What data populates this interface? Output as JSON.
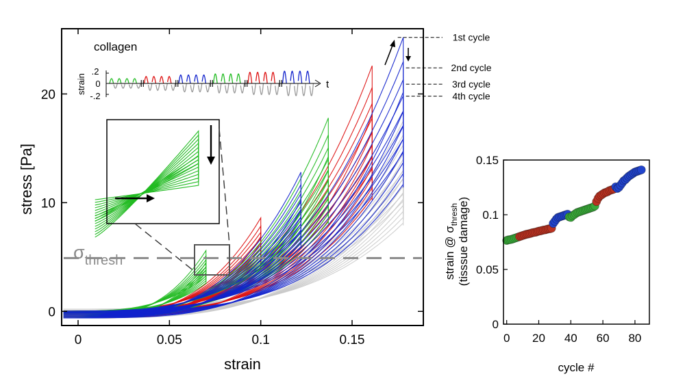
{
  "chart_data": [
    {
      "type": "line",
      "title": "",
      "panel_label": "collagen",
      "xlabel": "strain",
      "ylabel": "stress [Pa]",
      "xlim": [
        -0.009,
        0.189
      ],
      "ylim": [
        -1.3,
        26.0
      ],
      "xticks": [
        0,
        0.05,
        0.1,
        0.15
      ],
      "xtick_labels": [
        "0",
        "0.05",
        "0.1",
        "0.15"
      ],
      "yticks": [
        0,
        10,
        20
      ],
      "ytick_labels": [
        "0",
        "10",
        "20"
      ],
      "grid": false,
      "series": [
        {
          "name": "green",
          "color": "#22bb22",
          "max_strains": [
            0.07,
            0.137
          ],
          "peak_stress": [
            5.6,
            17.8
          ]
        },
        {
          "name": "red",
          "color": "#dd1111",
          "max_strains": [
            0.1,
            0.161
          ],
          "peak_stress": [
            8.6,
            22.6
          ]
        },
        {
          "name": "blue",
          "color": "#1122cc",
          "max_strains": [
            0.122,
            0.178
          ],
          "peak_stress": [
            12.8,
            25.2
          ]
        },
        {
          "name": "grey",
          "color": "#c8c8c8",
          "max_strains": [
            0.178
          ],
          "peak_stress": [
            17.5
          ]
        }
      ],
      "threshold": {
        "label_main": "σ",
        "label_sub": "thresh",
        "value": 4.9,
        "color": "#888888"
      },
      "cycle_annotations": [
        {
          "label": "1st cycle",
          "stress": 25.2
        },
        {
          "label": "2nd cycle",
          "stress": 22.4
        },
        {
          "label": "3rd cycle",
          "stress": 20.9
        },
        {
          "label": "4th cycle",
          "stress": 19.8
        }
      ],
      "inset_protocol": {
        "ylabel": "strain",
        "xlabel": "t",
        "ytick_labels": [
          ".2",
          "0",
          "-.2"
        ],
        "blocks": [
          {
            "color": "#22bb22",
            "amplitude": 0.07
          },
          {
            "color": "#dd1111",
            "amplitude": 0.1
          },
          {
            "color": "#1122cc",
            "amplitude": 0.122
          },
          {
            "color": "#22bb22",
            "amplitude": 0.137
          },
          {
            "color": "#dd1111",
            "amplitude": 0.161
          },
          {
            "color": "#1122cc",
            "amplitude": 0.178
          }
        ],
        "negative_color": "#999999"
      },
      "inset_zoom": {
        "xrange": [
          0.064,
          0.083
        ],
        "yrange": [
          3.5,
          5.8
        ],
        "color": "#22bb22"
      }
    },
    {
      "type": "scatter",
      "title": "",
      "xlabel": "cycle #",
      "ylabel_main": "strain @ σ",
      "ylabel_sub": "thresh",
      "ylabel_line2": "(tisssue damage)",
      "xlim": [
        -2,
        89
      ],
      "ylim": [
        0,
        0.15
      ],
      "xticks": [
        0,
        20,
        40,
        60,
        80
      ],
      "xtick_labels": [
        "0",
        "20",
        "40",
        "60",
        "80"
      ],
      "yticks": [
        0,
        0.05,
        0.1,
        0.15
      ],
      "ytick_labels": [
        "0",
        "0.05",
        "0.1",
        "0.15"
      ],
      "grid": false,
      "series": [
        {
          "name": "green",
          "color": "#3aaa3a",
          "x": [
            0,
            1,
            2,
            3,
            4,
            5,
            6,
            7
          ],
          "y": [
            0.0765,
            0.077,
            0.0772,
            0.0775,
            0.078,
            0.0785,
            0.079,
            0.0795
          ]
        },
        {
          "name": "red",
          "color": "#bb3322",
          "x": [
            8,
            9,
            10,
            11,
            12,
            13,
            14,
            15,
            16,
            17,
            18,
            19,
            20,
            21,
            22,
            23,
            24,
            25,
            26,
            27,
            28
          ],
          "y": [
            0.08,
            0.0805,
            0.081,
            0.0815,
            0.082,
            0.0823,
            0.0826,
            0.083,
            0.0835,
            0.0838,
            0.084,
            0.0845,
            0.085,
            0.0852,
            0.0856,
            0.086,
            0.0862,
            0.0866,
            0.087,
            0.0872,
            0.0876
          ]
        },
        {
          "name": "blue",
          "color": "#2244cc",
          "x": [
            29,
            30,
            31,
            32,
            33,
            34,
            35,
            36,
            37,
            38
          ],
          "y": [
            0.092,
            0.094,
            0.096,
            0.0975,
            0.098,
            0.0985,
            0.099,
            0.0995,
            0.1,
            0.1005
          ]
        },
        {
          "name": "green2",
          "color": "#3aaa3a",
          "x": [
            39,
            40,
            41,
            42,
            43,
            44,
            45,
            46,
            47,
            48,
            49,
            50,
            51,
            52,
            53,
            54,
            55
          ],
          "y": [
            0.098,
            0.0975,
            0.099,
            0.1,
            0.101,
            0.102,
            0.1025,
            0.103,
            0.1035,
            0.104,
            0.1045,
            0.105,
            0.1055,
            0.106,
            0.1065,
            0.107,
            0.108
          ]
        },
        {
          "name": "red2",
          "color": "#bb3322",
          "x": [
            56,
            57,
            58,
            59,
            60,
            61,
            62,
            63,
            64,
            65,
            66,
            67
          ],
          "y": [
            0.112,
            0.115,
            0.117,
            0.118,
            0.119,
            0.12,
            0.1205,
            0.121,
            0.122,
            0.1225,
            0.123,
            0.1235
          ]
        },
        {
          "name": "blue2",
          "color": "#2244cc",
          "x": [
            68,
            69,
            70,
            71,
            72,
            73,
            74,
            75,
            76,
            77,
            78,
            79,
            80,
            81,
            82,
            83,
            84
          ],
          "y": [
            0.1255,
            0.124,
            0.125,
            0.127,
            0.129,
            0.131,
            0.132,
            0.1335,
            0.135,
            0.136,
            0.137,
            0.138,
            0.139,
            0.1395,
            0.14,
            0.1405,
            0.141
          ]
        }
      ]
    }
  ]
}
